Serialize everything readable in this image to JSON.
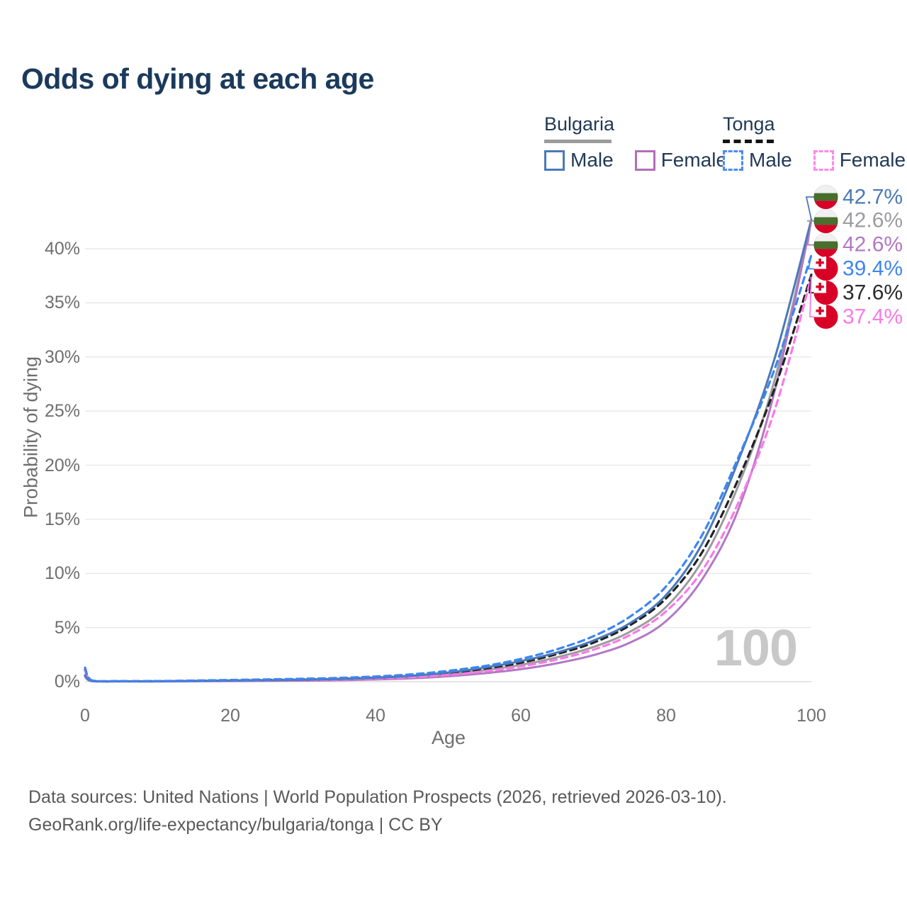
{
  "title": "Odds of dying at each age",
  "legend": {
    "groups": [
      {
        "label": "Bulgaria",
        "line_style": "solid",
        "underline_color": "#9b9b9b",
        "items": [
          {
            "label": "Male",
            "color": "#4b79b7"
          },
          {
            "label": "Female",
            "color": "#b06fb5"
          }
        ]
      },
      {
        "label": "Tonga",
        "line_style": "dashed",
        "underline_color": "#141414",
        "items": [
          {
            "label": "Male",
            "color": "#4b8bf5"
          },
          {
            "label": "Female",
            "color": "#fc8ae6"
          }
        ]
      }
    ]
  },
  "chart_data": {
    "type": "line",
    "title": "Odds of dying at each age",
    "xlabel": "Age",
    "ylabel": "Probability of dying",
    "x_ticks": [
      0,
      20,
      40,
      60,
      80,
      100
    ],
    "y_ticks": [
      "0%",
      "5%",
      "10%",
      "15%",
      "20%",
      "25%",
      "30%",
      "35%",
      "40%"
    ],
    "xlim": [
      0,
      100
    ],
    "ylim_percent": [
      0,
      44
    ],
    "grid": "horizontal",
    "legend_position": "top-right",
    "hover_age_watermark": "100",
    "ages": [
      0,
      1,
      5,
      10,
      15,
      20,
      25,
      30,
      35,
      40,
      45,
      50,
      55,
      60,
      65,
      70,
      75,
      80,
      85,
      90,
      95,
      100
    ],
    "series": [
      {
        "name": "Bulgaria Male",
        "country": "Bulgaria",
        "sex": "male",
        "dash": false,
        "color": "#4b79b7",
        "flag": "bulgaria",
        "end_label": "42.7%",
        "end_label_color": "#4b79b7",
        "values_percent": [
          0.6,
          0.06,
          0.03,
          0.03,
          0.06,
          0.1,
          0.13,
          0.17,
          0.24,
          0.36,
          0.55,
          0.85,
          1.3,
          1.9,
          2.7,
          3.8,
          5.4,
          8.0,
          12.8,
          20.5,
          30.0,
          42.7
        ]
      },
      {
        "name": "Bulgaria Both sexes",
        "country": "Bulgaria",
        "sex": "both",
        "dash": false,
        "color": "#9c9ca0",
        "flag": "bulgaria",
        "end_label": "42.6%",
        "end_label_color": "#9c9ca0",
        "values_percent": [
          0.55,
          0.05,
          0.03,
          0.03,
          0.05,
          0.08,
          0.1,
          0.13,
          0.18,
          0.28,
          0.43,
          0.68,
          1.05,
          1.55,
          2.25,
          3.2,
          4.6,
          6.9,
          11.2,
          18.2,
          28.0,
          42.6
        ]
      },
      {
        "name": "Bulgaria Female",
        "country": "Bulgaria",
        "sex": "female",
        "dash": false,
        "color": "#b278c4",
        "flag": "bulgaria",
        "end_label": "42.6%",
        "end_label_color": "#b278c4",
        "values_percent": [
          0.45,
          0.04,
          0.02,
          0.02,
          0.03,
          0.05,
          0.07,
          0.09,
          0.13,
          0.2,
          0.31,
          0.5,
          0.78,
          1.15,
          1.7,
          2.45,
          3.6,
          5.6,
          9.5,
          16.0,
          27.0,
          42.6
        ]
      },
      {
        "name": "Tonga Male",
        "country": "Tonga",
        "sex": "male",
        "dash": true,
        "color": "#3d85f2",
        "flag": "tonga",
        "end_label": "39.4%",
        "end_label_color": "#3d85f2",
        "values_percent": [
          1.3,
          0.1,
          0.05,
          0.06,
          0.1,
          0.16,
          0.21,
          0.27,
          0.35,
          0.48,
          0.68,
          1.0,
          1.45,
          2.1,
          3.0,
          4.2,
          6.0,
          8.8,
          13.6,
          20.8,
          29.0,
          39.4
        ]
      },
      {
        "name": "Tonga Both sexes",
        "country": "Tonga",
        "sex": "both",
        "dash": true,
        "color": "#222222",
        "flag": "tonga",
        "end_label": "37.6%",
        "end_label_color": "#2b2b2b",
        "values_percent": [
          1.1,
          0.09,
          0.04,
          0.05,
          0.08,
          0.12,
          0.16,
          0.2,
          0.27,
          0.38,
          0.55,
          0.8,
          1.2,
          1.75,
          2.55,
          3.6,
          5.2,
          7.7,
          12.0,
          18.8,
          27.2,
          37.6
        ]
      },
      {
        "name": "Tonga Female",
        "country": "Tonga",
        "sex": "female",
        "dash": true,
        "color": "#fb79e7",
        "flag": "tonga",
        "end_label": "37.4%",
        "end_label_color": "#fb79e7",
        "values_percent": [
          1.0,
          0.08,
          0.04,
          0.04,
          0.06,
          0.09,
          0.12,
          0.15,
          0.2,
          0.29,
          0.42,
          0.62,
          0.95,
          1.4,
          2.05,
          2.95,
          4.3,
          6.5,
          10.3,
          16.6,
          25.2,
          37.4
        ]
      }
    ],
    "flag_colors": {
      "bulgaria_white": "#f0f0f0",
      "bulgaria_green": "#496e2d",
      "flag_red": "#d80027",
      "tonga_red": "#d80027"
    }
  },
  "footer": {
    "line1": "Data sources: United Nations | World Population Prospects (2026, retrieved 2026-03-10).",
    "line2": "GeoRank.org/life-expectancy/bulgaria/tonga | CC BY"
  }
}
